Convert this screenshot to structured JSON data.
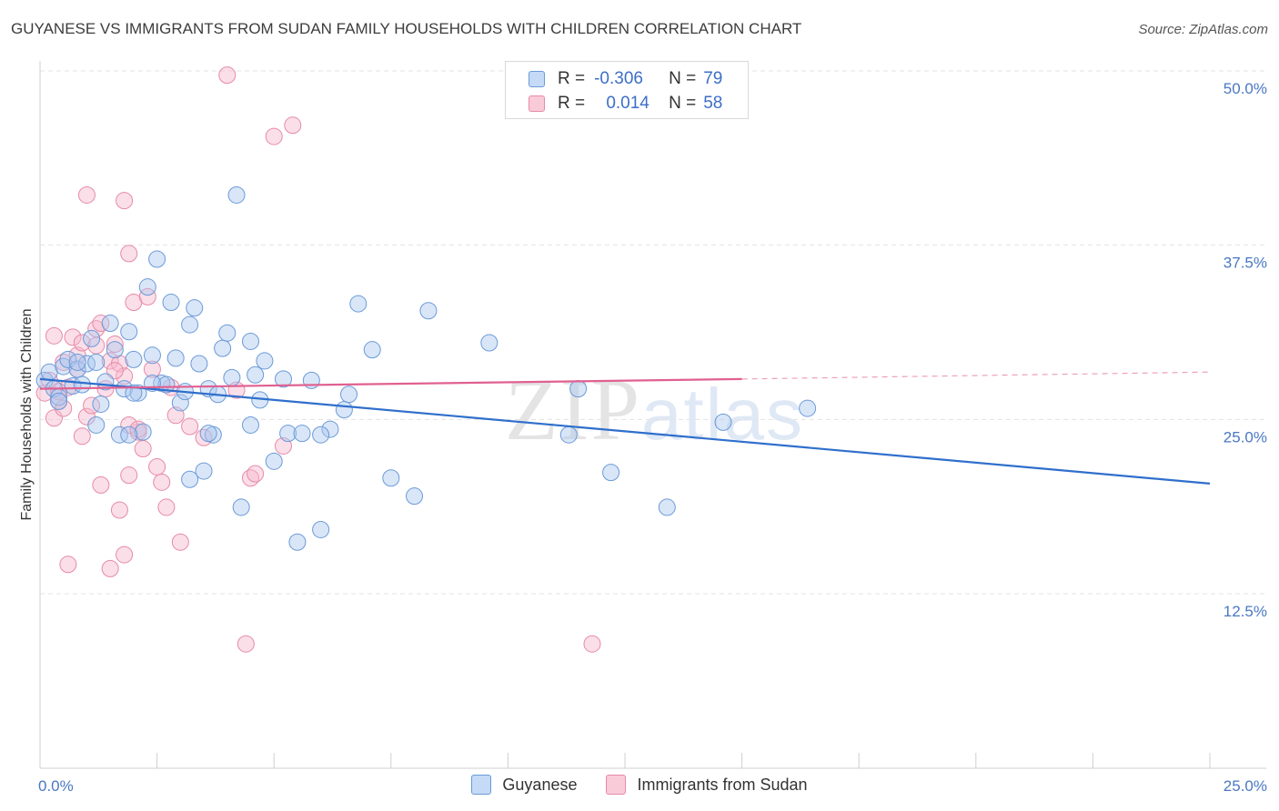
{
  "title": "GUYANESE VS IMMIGRANTS FROM SUDAN FAMILY HOUSEHOLDS WITH CHILDREN CORRELATION CHART",
  "source": "Source: ZipAtlas.com",
  "watermark": {
    "zip": "ZIP",
    "atlas": "atlas"
  },
  "legend": {
    "series1": {
      "r_label": "R =",
      "r_value": "-0.306",
      "n_label": "N =",
      "n_value": "79"
    },
    "series2": {
      "r_label": "R =",
      "r_value": "0.014",
      "n_label": "N =",
      "n_value": "58"
    }
  },
  "colors": {
    "guyanese_fill": "#aac8f0",
    "guyanese_stroke": "#6b9ad8",
    "guyanese_line": "#2f6fcc",
    "sudan_fill": "#f7b8cb",
    "sudan_stroke": "#e68aa8",
    "sudan_line": "#e06090",
    "grid": "#e3e3e3",
    "tick": "#4a78c2"
  },
  "chart_data": {
    "type": "scatter",
    "title": "GUYANESE VS IMMIGRANTS FROM SUDAN FAMILY HOUSEHOLDS WITH CHILDREN CORRELATION CHART",
    "xlabel": "",
    "ylabel": "Family Households with Children",
    "xlim": [
      0,
      25
    ],
    "ylim": [
      0,
      52
    ],
    "x_tick_labels": [
      {
        "value": 0,
        "label": "0.0%"
      },
      {
        "value": 25,
        "label": "25.0%"
      }
    ],
    "y_tick_labels": [
      {
        "value": 12.5,
        "label": "12.5%"
      },
      {
        "value": 25.0,
        "label": "25.0%"
      },
      {
        "value": 37.5,
        "label": "37.5%"
      },
      {
        "value": 50.0,
        "label": "50.0%"
      }
    ],
    "series": [
      {
        "name": "Guyanese",
        "trend": {
          "x0": 0,
          "y0": 27.9,
          "x1": 25,
          "y1": 20.4
        },
        "points": [
          [
            0.1,
            27.8
          ],
          [
            0.2,
            28.4
          ],
          [
            0.3,
            27.2
          ],
          [
            0.4,
            26.6
          ],
          [
            0.5,
            28.8
          ],
          [
            0.6,
            29.3
          ],
          [
            0.7,
            27.4
          ],
          [
            0.8,
            28.6
          ],
          [
            0.9,
            27.5
          ],
          [
            1.0,
            29.0
          ],
          [
            1.1,
            30.8
          ],
          [
            1.2,
            29.1
          ],
          [
            1.3,
            26.1
          ],
          [
            1.4,
            27.7
          ],
          [
            1.5,
            31.9
          ],
          [
            1.6,
            30.0
          ],
          [
            1.7,
            23.9
          ],
          [
            1.8,
            27.2
          ],
          [
            1.9,
            31.3
          ],
          [
            2.0,
            29.3
          ],
          [
            2.1,
            26.9
          ],
          [
            2.2,
            24.1
          ],
          [
            2.3,
            34.5
          ],
          [
            2.4,
            29.6
          ],
          [
            2.5,
            36.5
          ],
          [
            2.6,
            27.6
          ],
          [
            2.7,
            27.5
          ],
          [
            2.8,
            33.4
          ],
          [
            2.9,
            29.4
          ],
          [
            3.0,
            26.2
          ],
          [
            3.1,
            27.0
          ],
          [
            3.2,
            31.8
          ],
          [
            3.3,
            33.0
          ],
          [
            3.4,
            29.0
          ],
          [
            3.5,
            21.3
          ],
          [
            3.6,
            27.2
          ],
          [
            3.7,
            23.9
          ],
          [
            3.8,
            26.8
          ],
          [
            3.9,
            30.1
          ],
          [
            4.0,
            31.2
          ],
          [
            4.2,
            41.1
          ],
          [
            4.3,
            18.7
          ],
          [
            4.5,
            24.6
          ],
          [
            4.6,
            28.2
          ],
          [
            4.7,
            26.4
          ],
          [
            4.8,
            29.2
          ],
          [
            5.0,
            22.0
          ],
          [
            5.2,
            27.9
          ],
          [
            5.3,
            24.0
          ],
          [
            5.5,
            16.2
          ],
          [
            5.8,
            27.8
          ],
          [
            6.0,
            17.1
          ],
          [
            6.2,
            24.3
          ],
          [
            6.5,
            25.7
          ],
          [
            6.6,
            26.8
          ],
          [
            6.8,
            33.3
          ],
          [
            7.1,
            30.0
          ],
          [
            7.5,
            20.8
          ],
          [
            8.0,
            19.5
          ],
          [
            8.3,
            32.8
          ],
          [
            9.6,
            30.5
          ],
          [
            11.3,
            23.9
          ],
          [
            11.5,
            27.2
          ],
          [
            12.2,
            21.2
          ],
          [
            13.4,
            18.7
          ],
          [
            14.6,
            24.8
          ],
          [
            16.4,
            25.8
          ],
          [
            2.0,
            26.9
          ],
          [
            0.4,
            26.3
          ],
          [
            1.2,
            24.6
          ],
          [
            0.8,
            29.1
          ],
          [
            3.2,
            20.7
          ],
          [
            4.1,
            28.0
          ],
          [
            5.6,
            24.0
          ],
          [
            6.0,
            23.9
          ],
          [
            4.5,
            30.6
          ],
          [
            2.4,
            27.6
          ],
          [
            3.6,
            24.0
          ],
          [
            1.9,
            23.9
          ]
        ]
      },
      {
        "name": "Immigrants from Sudan",
        "trend": {
          "x0": 0,
          "y0": 27.2,
          "x1": 15.0,
          "y1": 27.9,
          "dash_x1": 25,
          "dash_y1": 28.4
        },
        "points": [
          [
            0.1,
            26.9
          ],
          [
            0.2,
            27.8
          ],
          [
            0.3,
            25.1
          ],
          [
            0.4,
            26.3
          ],
          [
            0.5,
            29.1
          ],
          [
            0.6,
            27.3
          ],
          [
            0.7,
            30.9
          ],
          [
            0.8,
            29.6
          ],
          [
            0.9,
            30.5
          ],
          [
            1.0,
            25.2
          ],
          [
            1.1,
            26.0
          ],
          [
            1.2,
            31.5
          ],
          [
            1.3,
            31.9
          ],
          [
            1.4,
            27.2
          ],
          [
            1.5,
            29.2
          ],
          [
            1.6,
            30.4
          ],
          [
            1.7,
            29.0
          ],
          [
            1.8,
            28.1
          ],
          [
            1.9,
            21.0
          ],
          [
            2.0,
            33.4
          ],
          [
            2.1,
            24.1
          ],
          [
            2.2,
            22.9
          ],
          [
            2.3,
            33.8
          ],
          [
            2.4,
            28.6
          ],
          [
            2.5,
            21.6
          ],
          [
            2.6,
            20.5
          ],
          [
            2.7,
            18.7
          ],
          [
            2.8,
            27.3
          ],
          [
            2.9,
            25.3
          ],
          [
            3.0,
            16.2
          ],
          [
            3.2,
            24.5
          ],
          [
            3.5,
            23.7
          ],
          [
            4.0,
            49.7
          ],
          [
            4.2,
            27.1
          ],
          [
            4.4,
            8.9
          ],
          [
            5.0,
            45.3
          ],
          [
            5.4,
            46.1
          ],
          [
            1.0,
            41.1
          ],
          [
            1.8,
            40.7
          ],
          [
            1.9,
            36.9
          ],
          [
            0.6,
            14.6
          ],
          [
            1.5,
            14.3
          ],
          [
            1.8,
            15.3
          ],
          [
            1.7,
            18.5
          ],
          [
            0.9,
            23.8
          ],
          [
            1.3,
            20.3
          ],
          [
            1.9,
            24.6
          ],
          [
            2.1,
            24.3
          ],
          [
            4.5,
            20.8
          ],
          [
            4.6,
            21.1
          ],
          [
            5.2,
            23.1
          ],
          [
            0.5,
            25.8
          ],
          [
            0.3,
            31.0
          ],
          [
            1.6,
            28.5
          ],
          [
            11.8,
            8.9
          ],
          [
            0.4,
            27.0
          ],
          [
            1.2,
            30.3
          ],
          [
            0.8,
            28.6
          ]
        ]
      }
    ]
  }
}
